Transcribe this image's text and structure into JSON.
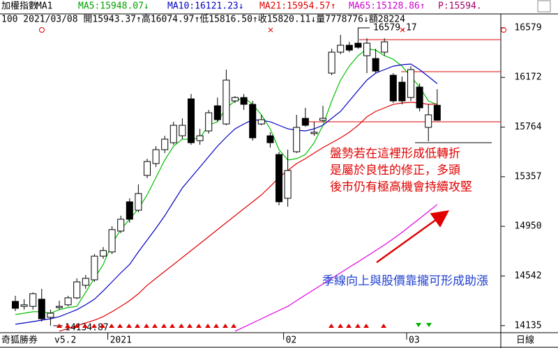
{
  "chart_data": {
    "type": "candlestick",
    "header": {
      "items": [
        {
          "text": "加權指數",
          "color": "#000000"
        },
        {
          "text": "MA1",
          "color": "#000000"
        },
        {
          "text": "MA5:15948.07↓",
          "color": "#00a000"
        },
        {
          "text": "MA10:16121.23↓",
          "color": "#0000c0"
        },
        {
          "text": "MA21:15954.57↑",
          "color": "#e00000"
        },
        {
          "text": "MA65:15128.86↑",
          "color": "#d000d0"
        },
        {
          "text": "P:15594.",
          "color": "#a00060"
        }
      ],
      "info": "100 2021/03/08 開15943.37↑高16074.97↑低15816.50↑收15820.11↓量7778776↓額28224"
    },
    "categories": [
      null,
      null,
      null,
      null,
      null,
      null,
      null,
      null,
      null,
      null,
      null,
      "2021",
      null,
      null,
      null,
      null,
      null,
      null,
      null,
      null,
      null,
      null,
      null,
      null,
      null,
      null,
      null,
      null,
      null,
      null,
      null,
      "02",
      null,
      null,
      null,
      null,
      null,
      null,
      null,
      null,
      null,
      null,
      null,
      null,
      null,
      "03",
      null,
      null,
      null
    ],
    "ohlc": {
      "open": [
        14334,
        14293,
        14293,
        14352,
        14203,
        14283,
        14306,
        14363,
        14466,
        14511,
        14705,
        14740,
        14911,
        15151,
        15082,
        15368,
        15465,
        15579,
        15636,
        15693,
        15996,
        15653,
        15733,
        15939,
        15790,
        15979,
        16007,
        15951,
        15790,
        15693,
        15539,
        15180,
        15562,
        15836,
        15711,
        15819,
        16207,
        16379,
        16436,
        16453,
        16350,
        16327,
        16379,
        16190,
        16133,
        16007,
        16093,
        15762,
        15943.37
      ],
      "high": [
        14380,
        14352,
        14408,
        14437,
        14266,
        14340,
        14380,
        14523,
        14551,
        14722,
        14780,
        14951,
        15037,
        15180,
        15294,
        15505,
        15608,
        15693,
        15808,
        15836,
        16036,
        15750,
        15905,
        16007,
        16236,
        16019,
        16036,
        15979,
        15865,
        15722,
        15562,
        15579,
        15865,
        15922,
        15808,
        15939,
        16407,
        16521,
        16464,
        16579.17,
        16493,
        16407,
        16493,
        16207,
        16179,
        16264,
        16122,
        15951,
        16074.97
      ],
      "low": [
        14254,
        14266,
        14266,
        14168,
        14134.87,
        14266,
        14293,
        14352,
        14437,
        14494,
        14683,
        14722,
        14894,
        14980,
        15065,
        15345,
        15436,
        15551,
        15619,
        15665,
        15619,
        15619,
        15711,
        15808,
        15779,
        15962,
        15905,
        15653,
        15779,
        15596,
        15122,
        15111,
        15551,
        15768,
        15693,
        15808,
        16190,
        16362,
        16379,
        16407,
        16207,
        16207,
        16350,
        15962,
        15951,
        15979,
        15893,
        15648,
        15816.5
      ],
      "close": [
        14277,
        14306,
        14397,
        14191,
        14237,
        14293,
        14363,
        14494,
        14523,
        14705,
        14751,
        14923,
        15008,
        15008,
        15219,
        15482,
        15579,
        15665,
        15779,
        15779,
        15636,
        15693,
        15882,
        15825,
        16150,
        16007,
        15951,
        15676,
        15825,
        15636,
        15151,
        15408,
        15762,
        15779,
        15722,
        15836,
        16379,
        16436,
        16396,
        16419,
        16453,
        16224,
        16464,
        15979,
        15979,
        16236,
        15922,
        15865,
        15820.11
      ]
    },
    "moving_averages": [
      {
        "name": "MA5",
        "color": "#00c000",
        "values": [
          14226,
          14237,
          14249,
          14249,
          14237,
          14266,
          14283,
          14293,
          14408,
          14523,
          14637,
          14808,
          14923,
          15008,
          15094,
          15208,
          15351,
          15494,
          15608,
          15665,
          15665,
          15676,
          15779,
          15808,
          15922,
          15979,
          16007,
          15951,
          15865,
          15750,
          15579,
          15494,
          15505,
          15539,
          15636,
          15779,
          15979,
          16150,
          16264,
          16350,
          16407,
          16396,
          16350,
          16321,
          16264,
          16179,
          16093,
          15979,
          15948.07
        ]
      },
      {
        "name": "MA10",
        "color": "#0000c0",
        "values": [
          14146,
          14157,
          14168,
          14180,
          14191,
          14209,
          14237,
          14266,
          14306,
          14352,
          14420,
          14494,
          14568,
          14637,
          14740,
          14837,
          14934,
          15037,
          15151,
          15265,
          15351,
          15436,
          15522,
          15608,
          15682,
          15750,
          15790,
          15825,
          15819,
          15808,
          15779,
          15750,
          15739,
          15733,
          15750,
          15779,
          15836,
          15893,
          15979,
          16065,
          16150,
          16207,
          16236,
          16264,
          16276,
          16282,
          16236,
          16179,
          16121.23
        ]
      },
      {
        "name": "MA21",
        "color": "#e00000",
        "values": [
          null,
          null,
          null,
          null,
          null,
          14089,
          14112,
          14134,
          14157,
          14180,
          14209,
          14249,
          14293,
          14340,
          14397,
          14466,
          14523,
          14580,
          14637,
          14694,
          14751,
          14808,
          14865,
          14923,
          14980,
          15037,
          15094,
          15151,
          15208,
          15277,
          15351,
          15408,
          15465,
          15505,
          15551,
          15596,
          15636,
          15676,
          15722,
          15779,
          15848,
          15893,
          15922,
          15951,
          15962,
          15968,
          15962,
          15951,
          15954.57
        ]
      },
      {
        "name": "MA65",
        "color": "#e000e0",
        "values": [
          null,
          null,
          null,
          null,
          null,
          null,
          null,
          null,
          null,
          null,
          null,
          null,
          null,
          null,
          null,
          null,
          null,
          null,
          null,
          null,
          null,
          null,
          null,
          null,
          null,
          14089,
          14123,
          14157,
          14191,
          14226,
          14260,
          14293,
          14340,
          14386,
          14431,
          14477,
          14523,
          14568,
          14614,
          14659,
          14705,
          14751,
          14797,
          14848,
          14900,
          14957,
          15014,
          15071,
          15128.86
        ]
      }
    ],
    "ylim": [
      14077,
      16693
    ],
    "yticks": [
      16579,
      16172,
      15764,
      15357,
      14950,
      14542,
      14135
    ],
    "annotations": {
      "high_label": "16579.17",
      "low_label": "14134.87",
      "red_note": [
        "盤勢若在這裡形成低轉折",
        "是屬於良性的修正，多頭",
        "後市仍有極高機會持續攻堅"
      ],
      "blue_note": "季線向上與股價靠攏可形成助漲"
    },
    "footer": {
      "brand": "奇狐勝券",
      "version": "v5.2",
      "period": "日線"
    }
  }
}
